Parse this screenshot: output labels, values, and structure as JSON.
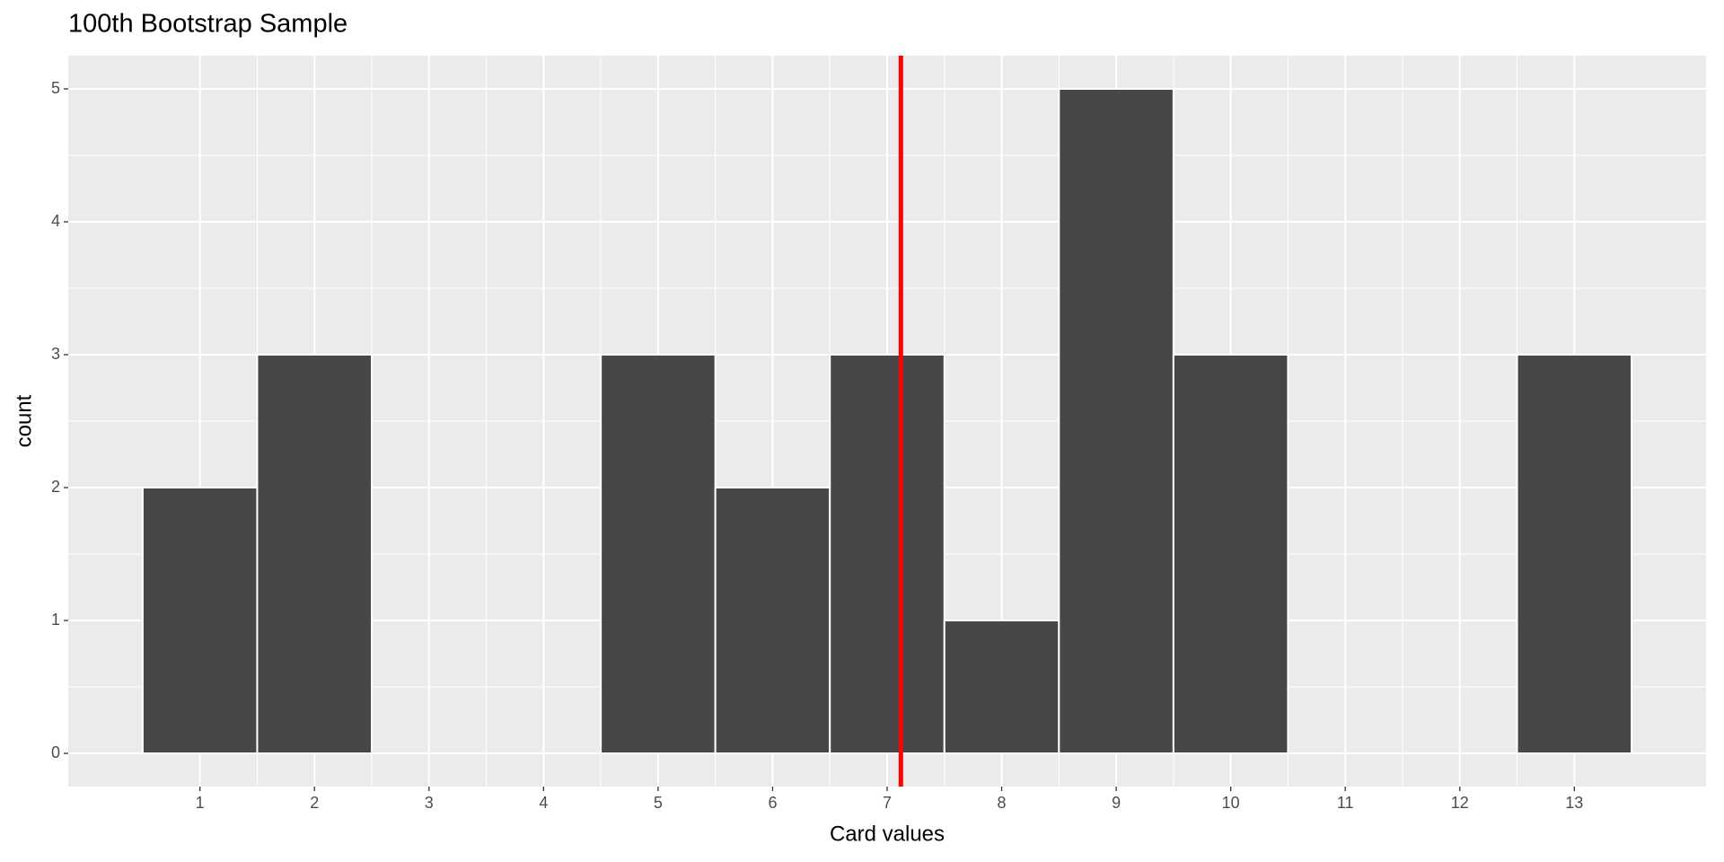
{
  "chart_data": {
    "type": "histogram",
    "title": "100th Bootstrap Sample",
    "x_label": "Card values",
    "y_label": "count",
    "bins": [
      0.5,
      1.5,
      2.5,
      3.5,
      4.5,
      5.5,
      6.5,
      7.5,
      8.5,
      9.5,
      10.5,
      11.5,
      12.5,
      13.5
    ],
    "values": [
      2,
      3,
      0,
      0,
      3,
      2,
      3,
      1,
      5,
      3,
      0,
      0,
      3
    ],
    "color": "#474747",
    "xlim": [
      -0.15,
      14.15
    ],
    "xticks": [
      1,
      2,
      3,
      4,
      5,
      6,
      7,
      8,
      9,
      10,
      11,
      12,
      13
    ],
    "ylim": [
      -0.25,
      5.25
    ],
    "yticks": [
      0,
      1,
      2,
      3,
      4,
      5
    ],
    "grid": true,
    "vline": {
      "value": 7.12,
      "color": "#ff0000"
    }
  }
}
